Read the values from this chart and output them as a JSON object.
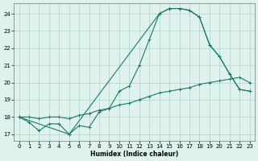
{
  "xlabel": "Humidex (Indice chaleur)",
  "xlim": [
    -0.5,
    23.5
  ],
  "ylim": [
    16.6,
    24.6
  ],
  "yticks": [
    17,
    18,
    19,
    20,
    21,
    22,
    23,
    24
  ],
  "xticks": [
    0,
    1,
    2,
    3,
    4,
    5,
    6,
    7,
    8,
    9,
    10,
    11,
    12,
    13,
    14,
    15,
    16,
    17,
    18,
    19,
    20,
    21,
    22,
    23
  ],
  "bg_color": "#dff2ee",
  "grid_color": "#aed4cc",
  "line_color": "#1a7a6a",
  "curve1_x": [
    0,
    1,
    2,
    3,
    4,
    5,
    6,
    7,
    8,
    9,
    10,
    11,
    12,
    13,
    14,
    15,
    16,
    17,
    18,
    19,
    20,
    21,
    22,
    23
  ],
  "curve1_y": [
    18.0,
    17.7,
    17.2,
    17.6,
    17.6,
    17.0,
    17.5,
    17.4,
    18.3,
    18.5,
    19.5,
    19.8,
    21.0,
    22.5,
    24.0,
    24.3,
    24.3,
    24.2,
    23.8,
    22.2,
    21.5,
    20.5,
    19.6,
    19.5
  ],
  "curve2_x": [
    0,
    5,
    14,
    15,
    16,
    17,
    18,
    19,
    20,
    21,
    22,
    23
  ],
  "curve2_y": [
    18.0,
    17.0,
    24.0,
    24.3,
    24.3,
    24.2,
    23.8,
    22.2,
    21.5,
    20.5,
    19.6,
    19.5
  ],
  "curve3_x": [
    0,
    1,
    2,
    3,
    4,
    5,
    6,
    7,
    8,
    9,
    10,
    11,
    12,
    13,
    14,
    15,
    16,
    17,
    18,
    19,
    20,
    21,
    22,
    23
  ],
  "curve3_y": [
    18.0,
    18.0,
    17.9,
    18.0,
    18.0,
    17.9,
    18.1,
    18.2,
    18.4,
    18.5,
    18.7,
    18.8,
    19.0,
    19.2,
    19.4,
    19.5,
    19.6,
    19.7,
    19.9,
    20.0,
    20.1,
    20.2,
    20.3,
    20.0
  ]
}
